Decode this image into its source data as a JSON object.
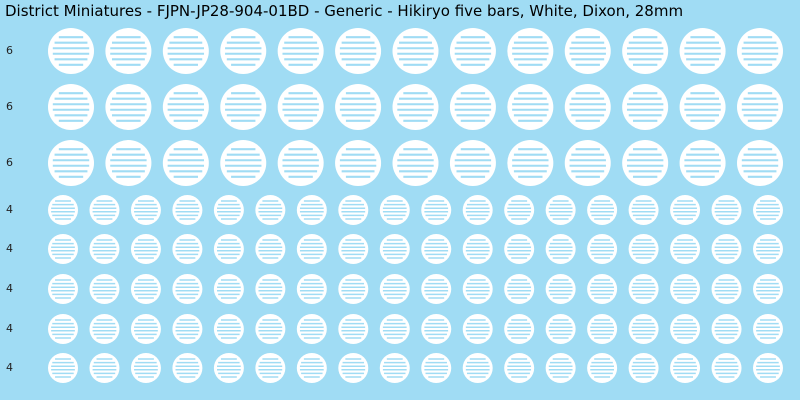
{
  "title": "District Miniatures - FJPN-JP28-904-01BD - Generic - Hikiryo five bars, White, Dixon, 28mm",
  "rows": [
    {
      "label": "6"
    },
    {
      "label": "6"
    },
    {
      "label": "6"
    },
    {
      "label": "4"
    },
    {
      "label": "4"
    },
    {
      "label": "4"
    },
    {
      "label": "4"
    },
    {
      "label": "4"
    }
  ]
}
